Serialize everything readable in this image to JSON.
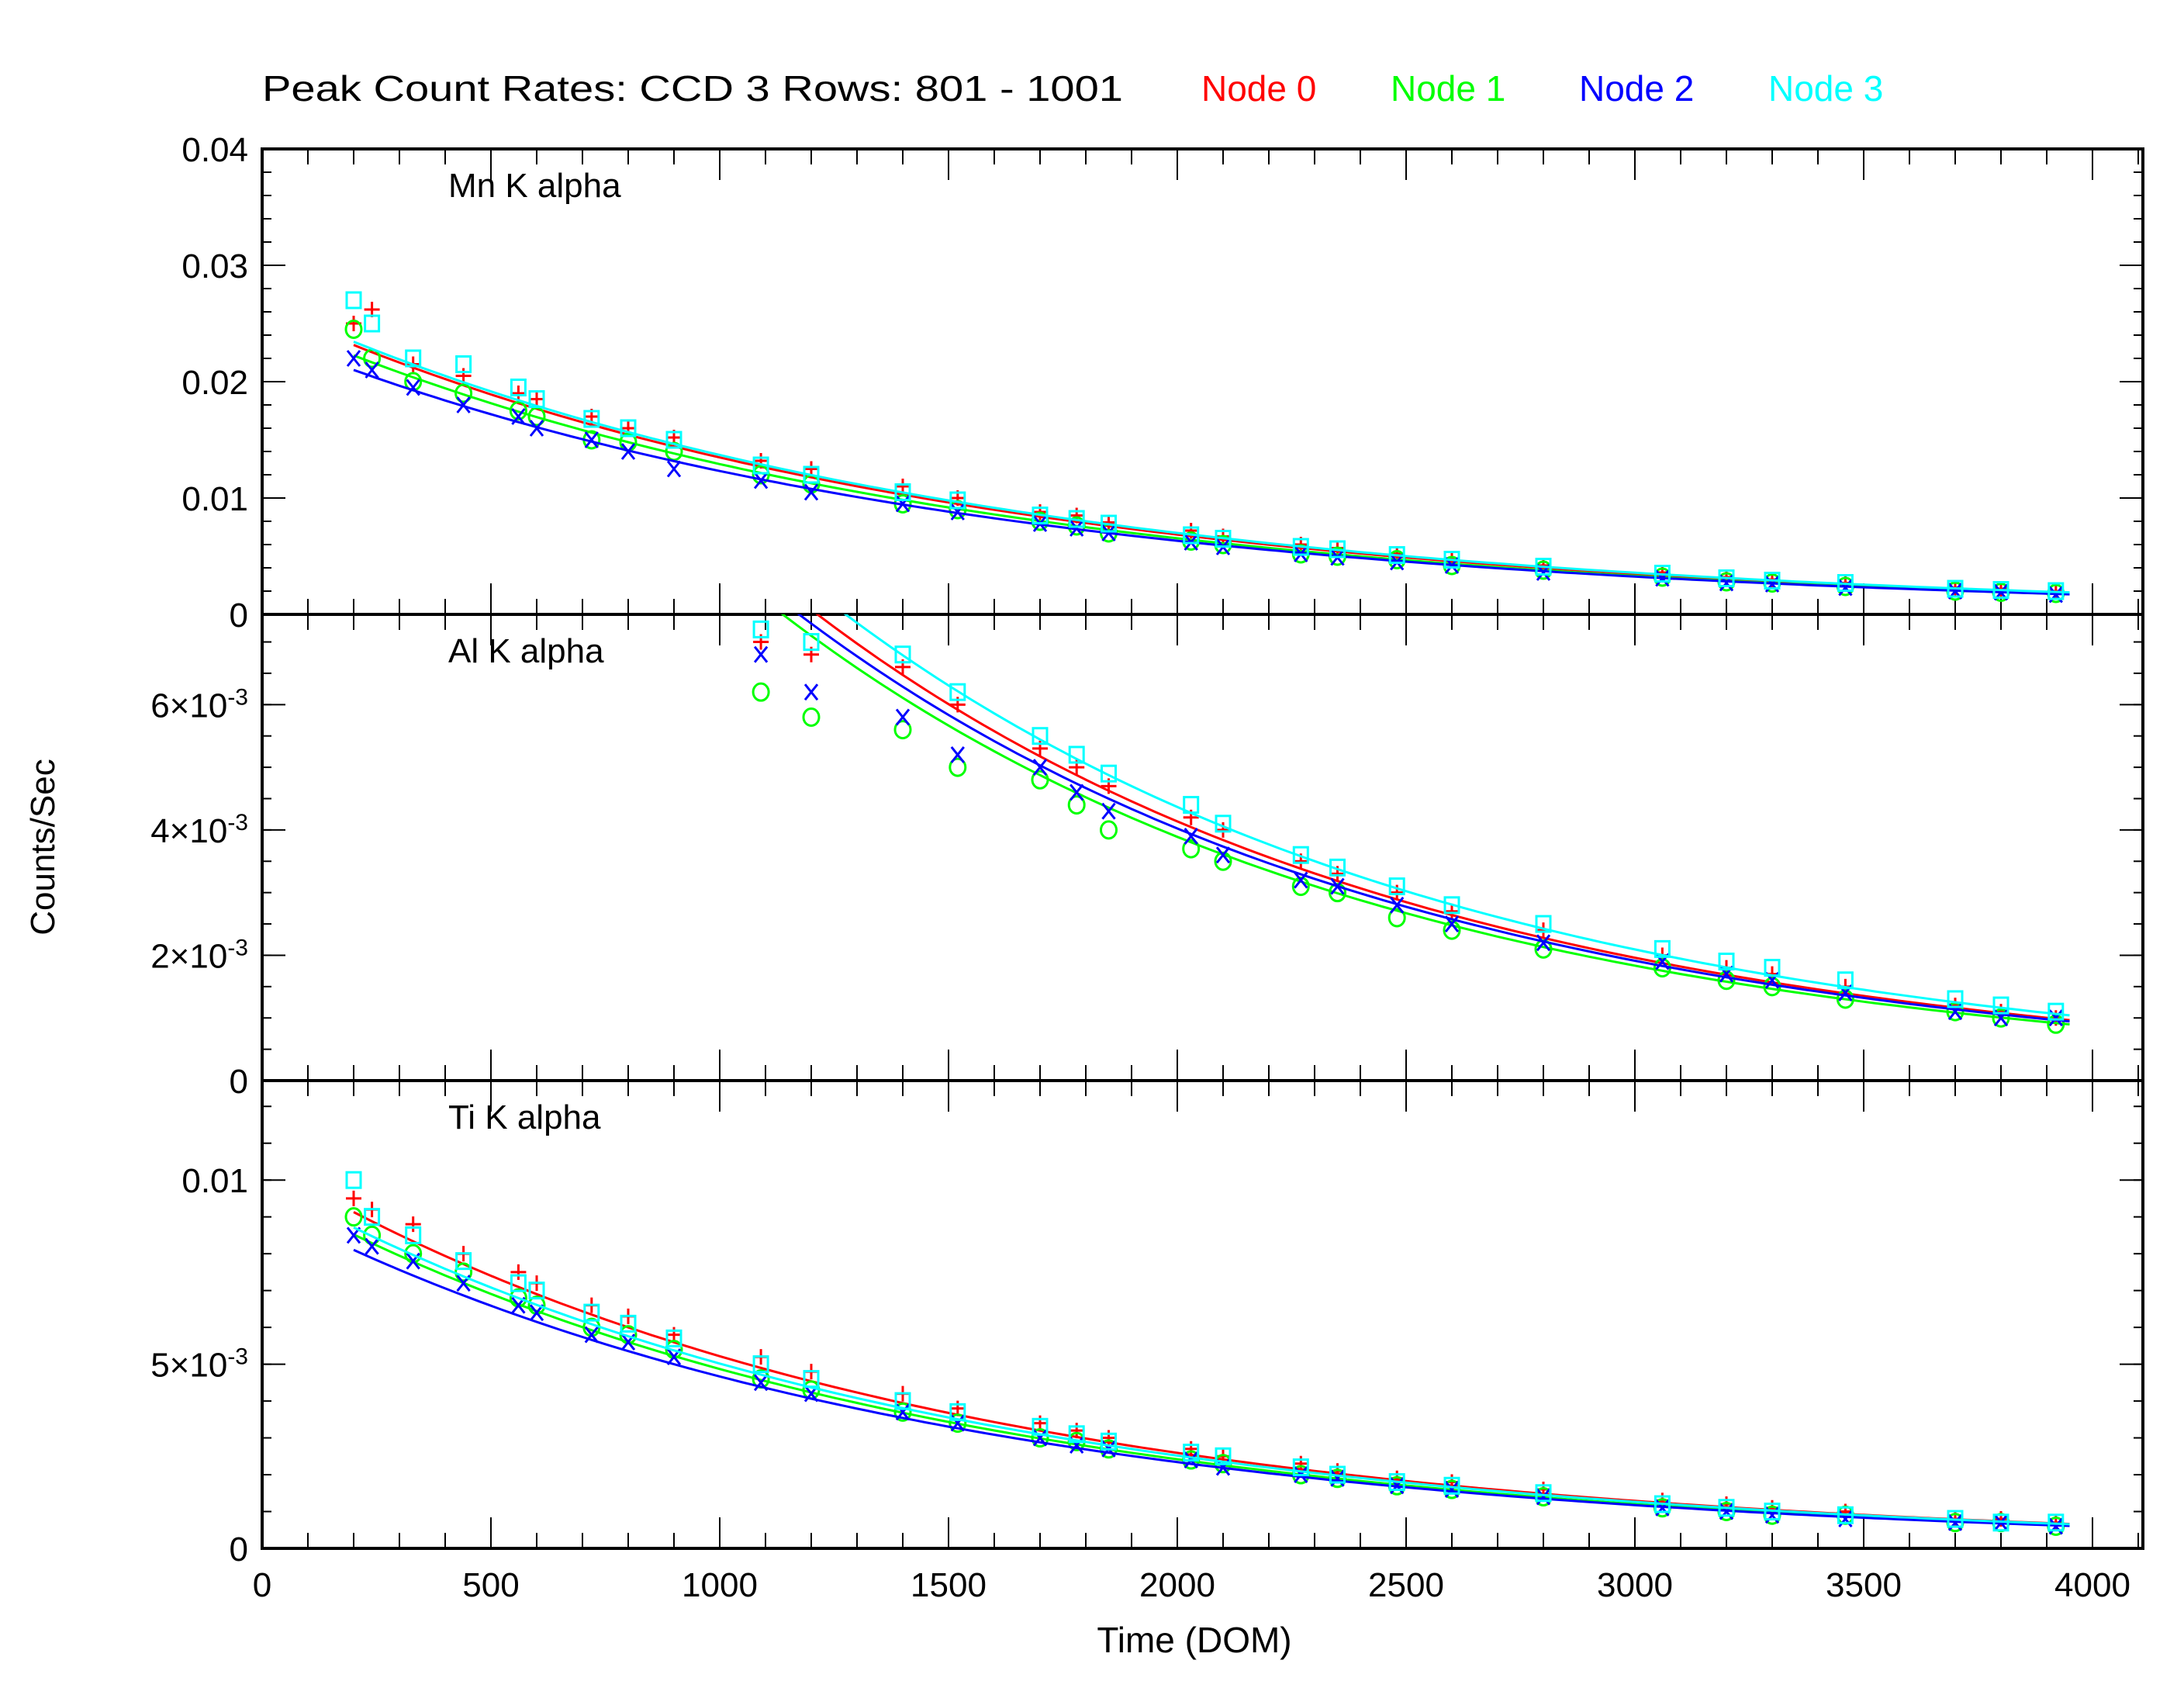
{
  "title": "Peak Count Rates: CCD 3 Rows: 801 - 1001",
  "legend": [
    {
      "label": "Node 0",
      "color": "#ff0000",
      "marker": "plus"
    },
    {
      "label": "Node 1",
      "color": "#00ff00",
      "marker": "circle"
    },
    {
      "label": "Node 2",
      "color": "#0000ff",
      "marker": "x"
    },
    {
      "label": "Node 3",
      "color": "#00ffff",
      "marker": "square"
    }
  ],
  "xlabel": "Time (DOM)",
  "ylabel": "Counts/Sec",
  "xlim": [
    0,
    4100
  ],
  "xticks": [
    "0",
    "500",
    "1000",
    "1500",
    "2000",
    "2500",
    "3000",
    "3500",
    "4000"
  ],
  "chart_data": [
    {
      "type": "scatter",
      "label": "Mn K alpha",
      "ylim": [
        0,
        0.04
      ],
      "yticks": [
        {
          "v": 0,
          "t": "0"
        },
        {
          "v": 0.01,
          "t": "0.01"
        },
        {
          "v": 0.02,
          "t": "0.02"
        },
        {
          "v": 0.03,
          "t": "0.03"
        },
        {
          "v": 0.04,
          "t": "0.04"
        }
      ],
      "x": [
        200,
        240,
        330,
        440,
        560,
        600,
        720,
        800,
        900,
        1090,
        1200,
        1400,
        1520,
        1700,
        1780,
        1850,
        2030,
        2100,
        2270,
        2350,
        2480,
        2600,
        2800,
        3060,
        3200,
        3300,
        3460,
        3700,
        3800,
        3920
      ],
      "series": [
        {
          "name": "Node 0",
          "values": [
            0.025,
            0.0262,
            0.0215,
            0.0205,
            0.019,
            0.0185,
            0.017,
            0.016,
            0.0152,
            0.0132,
            0.0125,
            0.011,
            0.01,
            0.0088,
            0.0085,
            0.0079,
            0.0072,
            0.0067,
            0.006,
            0.0057,
            0.0052,
            0.0048,
            0.0042,
            0.0036,
            0.0032,
            0.003,
            0.0027,
            0.0023,
            0.0022,
            0.002
          ],
          "fit": {
            "a": 0.0265,
            "tau": 1480
          }
        },
        {
          "name": "Node 1",
          "values": [
            0.0245,
            0.022,
            0.02,
            0.019,
            0.0175,
            0.017,
            0.015,
            0.0148,
            0.014,
            0.012,
            0.0112,
            0.0095,
            0.009,
            0.008,
            0.0076,
            0.007,
            0.0063,
            0.006,
            0.0052,
            0.005,
            0.0047,
            0.0042,
            0.0038,
            0.0032,
            0.0028,
            0.0027,
            0.0024,
            0.002,
            0.0019,
            0.0018
          ],
          "fit": {
            "a": 0.0255,
            "tau": 1470
          }
        },
        {
          "name": "Node 2",
          "values": [
            0.022,
            0.021,
            0.0195,
            0.018,
            0.017,
            0.016,
            0.015,
            0.014,
            0.0125,
            0.0115,
            0.0105,
            0.0095,
            0.0088,
            0.0078,
            0.0074,
            0.007,
            0.0062,
            0.0058,
            0.0052,
            0.0049,
            0.0045,
            0.0042,
            0.0036,
            0.0031,
            0.0027,
            0.0026,
            0.0023,
            0.002,
            0.0019,
            0.0017
          ],
          "fit": {
            "a": 0.024,
            "tau": 1500
          }
        },
        {
          "name": "Node 3",
          "values": [
            0.027,
            0.025,
            0.022,
            0.0215,
            0.0195,
            0.0185,
            0.0168,
            0.016,
            0.015,
            0.0128,
            0.012,
            0.0105,
            0.0098,
            0.0085,
            0.0082,
            0.0078,
            0.0068,
            0.0065,
            0.0058,
            0.0056,
            0.0051,
            0.0047,
            0.0041,
            0.0035,
            0.0031,
            0.0029,
            0.0027,
            0.0022,
            0.0021,
            0.002
          ],
          "fit": {
            "a": 0.0268,
            "tau": 1490
          }
        }
      ]
    },
    {
      "type": "scatter",
      "label": "Al K alpha",
      "ylim": [
        0,
        0.00744
      ],
      "yticks": [
        {
          "v": 0,
          "t": "0"
        },
        {
          "v": 0.002,
          "t": "2×10",
          "exp": "-3"
        },
        {
          "v": 0.004,
          "t": "4×10",
          "exp": "-3"
        },
        {
          "v": 0.006,
          "t": "6×10",
          "exp": "-3"
        }
      ],
      "x": [
        1090,
        1200,
        1400,
        1520,
        1700,
        1780,
        1850,
        2030,
        2100,
        2270,
        2350,
        2480,
        2600,
        2800,
        3060,
        3200,
        3300,
        3460,
        3700,
        3800,
        3920
      ],
      "series": [
        {
          "name": "Node 0",
          "values": [
            0.007,
            0.0068,
            0.0066,
            0.006,
            0.0053,
            0.005,
            0.0047,
            0.0042,
            0.004,
            0.0035,
            0.0033,
            0.003,
            0.0027,
            0.0024,
            0.002,
            0.0018,
            0.0017,
            0.0015,
            0.0012,
            0.0011,
            0.001
          ],
          "fit": {
            "a": 0.0184,
            "tau": 1340
          }
        },
        {
          "name": "Node 1",
          "values": [
            0.0062,
            0.0058,
            0.0056,
            0.005,
            0.0048,
            0.0044,
            0.004,
            0.0037,
            0.0035,
            0.0031,
            0.003,
            0.0026,
            0.0024,
            0.0021,
            0.0018,
            0.0016,
            0.0015,
            0.0013,
            0.0011,
            0.001,
            0.0009
          ],
          "fit": {
            "a": 0.0175,
            "tau": 1330
          }
        },
        {
          "name": "Node 2",
          "values": [
            0.0068,
            0.0062,
            0.0058,
            0.0052,
            0.005,
            0.0046,
            0.0043,
            0.0039,
            0.0036,
            0.0032,
            0.0031,
            0.0028,
            0.0025,
            0.0022,
            0.0019,
            0.0017,
            0.0016,
            0.0014,
            0.0011,
            0.001,
            0.001
          ],
          "fit": {
            "a": 0.0178,
            "tau": 1345
          }
        },
        {
          "name": "Node 3",
          "values": [
            0.0072,
            0.007,
            0.0068,
            0.0062,
            0.0055,
            0.0052,
            0.0049,
            0.0044,
            0.0041,
            0.0036,
            0.0034,
            0.0031,
            0.0028,
            0.0025,
            0.0021,
            0.0019,
            0.0018,
            0.0016,
            0.0013,
            0.0012,
            0.0011
          ],
          "fit": {
            "a": 0.019,
            "tau": 1360
          }
        }
      ]
    },
    {
      "type": "scatter",
      "label": "Ti K alpha",
      "ylim": [
        0,
        0.0127
      ],
      "yticks": [
        {
          "v": 0,
          "t": "0"
        },
        {
          "v": 0.005,
          "t": "5×10",
          "exp": "-3"
        },
        {
          "v": 0.01,
          "t": "0.01"
        }
      ],
      "x": [
        200,
        240,
        330,
        440,
        560,
        600,
        720,
        800,
        900,
        1090,
        1200,
        1400,
        1520,
        1700,
        1780,
        1850,
        2030,
        2100,
        2270,
        2350,
        2480,
        2600,
        2800,
        3060,
        3200,
        3300,
        3460,
        3700,
        3800,
        3920
      ],
      "series": [
        {
          "name": "Node 0",
          "values": [
            0.0095,
            0.0092,
            0.0088,
            0.008,
            0.0075,
            0.0072,
            0.0066,
            0.0063,
            0.0058,
            0.0052,
            0.0048,
            0.0042,
            0.0038,
            0.0034,
            0.0032,
            0.003,
            0.0027,
            0.0025,
            0.0023,
            0.0021,
            0.0019,
            0.0018,
            0.0016,
            0.0013,
            0.0012,
            0.0011,
            0.001,
            0.0008,
            0.0008,
            0.0007
          ],
          "fit": {
            "a": 0.0105,
            "tau": 1430
          }
        },
        {
          "name": "Node 1",
          "values": [
            0.009,
            0.0085,
            0.008,
            0.0075,
            0.0068,
            0.0066,
            0.006,
            0.0058,
            0.0054,
            0.0046,
            0.0043,
            0.0037,
            0.0034,
            0.003,
            0.0029,
            0.0027,
            0.0024,
            0.0023,
            0.002,
            0.0019,
            0.0017,
            0.0016,
            0.0014,
            0.0011,
            0.001,
            0.0009,
            0.0009,
            0.0007,
            0.0007,
            0.0006
          ],
          "fit": {
            "a": 0.0098,
            "tau": 1430
          }
        },
        {
          "name": "Node 2",
          "values": [
            0.0085,
            0.0082,
            0.0078,
            0.0072,
            0.0066,
            0.0064,
            0.0058,
            0.0056,
            0.0052,
            0.0045,
            0.0042,
            0.0037,
            0.0034,
            0.003,
            0.0028,
            0.0027,
            0.0024,
            0.0022,
            0.002,
            0.0019,
            0.0017,
            0.0016,
            0.0014,
            0.0011,
            0.001,
            0.0009,
            0.0008,
            0.0007,
            0.0007,
            0.0006
          ],
          "fit": {
            "a": 0.0093,
            "tau": 1450
          }
        },
        {
          "name": "Node 3",
          "values": [
            0.01,
            0.009,
            0.0085,
            0.0078,
            0.0072,
            0.007,
            0.0064,
            0.0061,
            0.0057,
            0.005,
            0.0046,
            0.004,
            0.0037,
            0.0033,
            0.0031,
            0.0029,
            0.0026,
            0.0025,
            0.0022,
            0.002,
            0.0018,
            0.0017,
            0.0015,
            0.0012,
            0.0011,
            0.001,
            0.0009,
            0.0008,
            0.0007,
            0.0007
          ],
          "fit": {
            "a": 0.01,
            "tau": 1450
          }
        }
      ]
    }
  ]
}
